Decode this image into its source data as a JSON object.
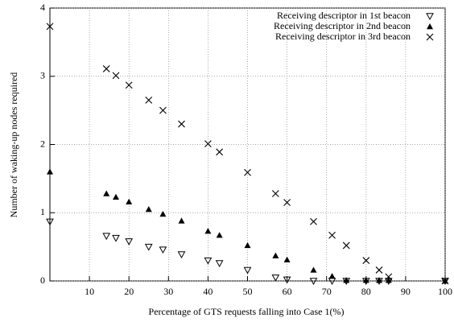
{
  "chart_data": {
    "type": "scatter",
    "x_label": "Percentage of GTS requests falling into Case 1(%)",
    "y_label": "Number of waking-up nodes required",
    "x": [
      0,
      14.3,
      16.7,
      20,
      25,
      28.6,
      33.3,
      40,
      42.9,
      50,
      57.1,
      60,
      66.7,
      71.4,
      75,
      80,
      83.3,
      85.7,
      100
    ],
    "series": [
      {
        "name": "Receiving descriptor in 1st beacon",
        "color": "#000000",
        "marker": "triangle-down",
        "values": [
          0.87,
          0.66,
          0.63,
          0.58,
          0.5,
          0.46,
          0.39,
          0.3,
          0.26,
          0.16,
          0.05,
          0.02,
          0,
          0,
          0,
          0,
          0,
          0,
          0
        ]
      },
      {
        "name": "Receiving descriptor in 2nd beacon",
        "color": "#000000",
        "marker": "triangle-up",
        "values": [
          1.6,
          1.28,
          1.23,
          1.16,
          1.05,
          0.98,
          0.88,
          0.73,
          0.67,
          0.52,
          0.37,
          0.31,
          0.16,
          0.07,
          0.01,
          0.01,
          0.01,
          0.01,
          0
        ]
      },
      {
        "name": "Receiving descriptor in 3rd beacon",
        "color": "#000000",
        "marker": "x",
        "values": [
          3.73,
          3.11,
          3.01,
          2.87,
          2.65,
          2.5,
          2.3,
          2.01,
          1.89,
          1.59,
          1.28,
          1.15,
          0.87,
          0.67,
          0.52,
          0.3,
          0.16,
          0.06,
          0
        ]
      }
    ],
    "xlim": [
      0,
      100
    ],
    "xticks": [
      10,
      20,
      30,
      40,
      50,
      60,
      70,
      80,
      90,
      100
    ],
    "ylim": [
      0,
      4
    ],
    "yticks": [
      0,
      1,
      2,
      3,
      4
    ],
    "grid": true,
    "legend": "top-right"
  }
}
